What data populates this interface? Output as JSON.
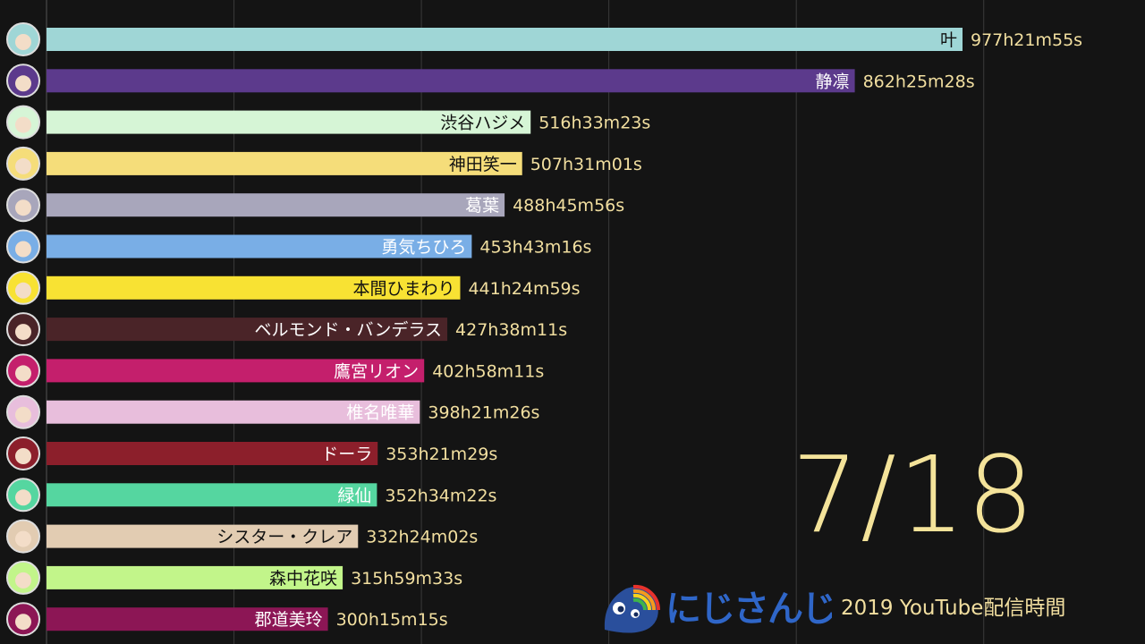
{
  "chart_data": {
    "type": "bar",
    "orientation": "horizontal",
    "date": "7/18",
    "caption": "2019 YouTube配信時間",
    "brand": "にじさんじ",
    "unit": "hours",
    "grid": true,
    "bars": [
      {
        "name": "叶",
        "value": 977.365,
        "value_label": "977h21m55s",
        "color": "#9fd6d6",
        "text_color": "#111111"
      },
      {
        "name": "静凛",
        "value": 862.424,
        "value_label": "862h25m28s",
        "color": "#5c3a8c",
        "text_color": "#ffffff"
      },
      {
        "name": "渋谷ハジメ",
        "value": 516.556,
        "value_label": "516h33m23s",
        "color": "#d6f5d6",
        "text_color": "#111111"
      },
      {
        "name": "神田笑一",
        "value": 507.517,
        "value_label": "507h31m01s",
        "color": "#f5dd7a",
        "text_color": "#111111"
      },
      {
        "name": "葛葉",
        "value": 488.766,
        "value_label": "488h45m56s",
        "color": "#a8a6bb",
        "text_color": "#ffffff"
      },
      {
        "name": "勇気ちひろ",
        "value": 453.721,
        "value_label": "453h43m16s",
        "color": "#79aee6",
        "text_color": "#ffffff"
      },
      {
        "name": "本間ひまわり",
        "value": 441.416,
        "value_label": "441h24m59s",
        "color": "#f8e233",
        "text_color": "#111111"
      },
      {
        "name": "ベルモンド・バンデラス",
        "value": 427.636,
        "value_label": "427h38m11s",
        "color": "#4a2428",
        "text_color": "#ffffff"
      },
      {
        "name": "鷹宮リオン",
        "value": 402.97,
        "value_label": "402h58m11s",
        "color": "#c41f6c",
        "text_color": "#ffffff"
      },
      {
        "name": "椎名唯華",
        "value": 398.357,
        "value_label": "398h21m26s",
        "color": "#e8bedc",
        "text_color": "#ffffff"
      },
      {
        "name": "ドーラ",
        "value": 353.358,
        "value_label": "353h21m29s",
        "color": "#8c1f2b",
        "text_color": "#ffffff"
      },
      {
        "name": "緑仙",
        "value": 352.573,
        "value_label": "352h34m22s",
        "color": "#55d6a0",
        "text_color": "#ffffff"
      },
      {
        "name": "シスター・クレア",
        "value": 332.401,
        "value_label": "332h24m02s",
        "color": "#e2ccb2",
        "text_color": "#111111"
      },
      {
        "name": "森中花咲",
        "value": 315.993,
        "value_label": "315h59m33s",
        "color": "#c2f58a",
        "text_color": "#111111"
      },
      {
        "name": "郡道美玲",
        "value": 300.254,
        "value_label": "300h15m15s",
        "color": "#8c1655",
        "text_color": "#ffffff"
      }
    ],
    "colors": {
      "background": "#141414",
      "grid": "#3a3a3a",
      "value_text": "#f2dfa0",
      "date_text": "#f4e39a"
    }
  }
}
